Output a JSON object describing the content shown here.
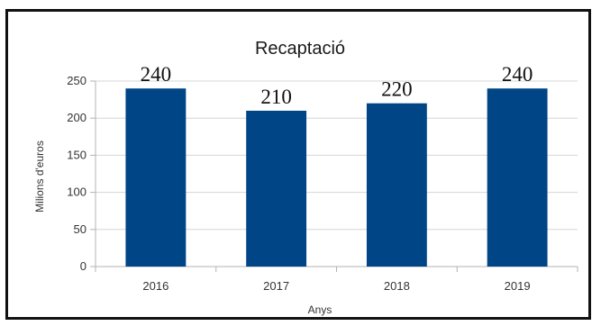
{
  "chart_data": {
    "type": "bar",
    "title": "Recaptació",
    "xlabel": "Anys",
    "ylabel": "Milions d'euros",
    "categories": [
      "2016",
      "2017",
      "2018",
      "2019"
    ],
    "values": [
      240,
      210,
      220,
      240
    ],
    "data_labels": [
      "240",
      "210",
      "220",
      "240"
    ],
    "ylim": [
      0,
      250
    ],
    "yticks": [
      0,
      50,
      100,
      150,
      200,
      250
    ],
    "grid": true,
    "legend": "none",
    "colors": {
      "bar": "#004586",
      "grid": "#d6d6d6",
      "axis": "#b3b3b3"
    }
  }
}
